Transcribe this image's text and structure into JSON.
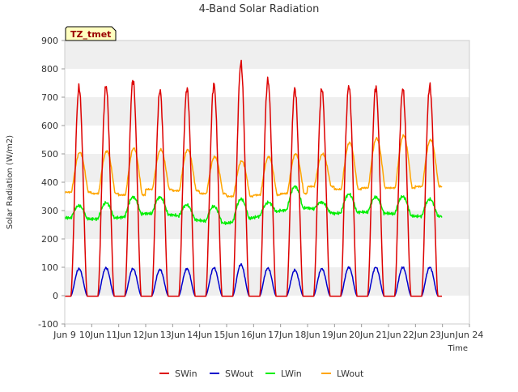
{
  "chart_data": {
    "type": "line",
    "title": "4-Band Solar Radiation",
    "xlabel": "Time",
    "ylabel": "Solar Radiation (W/m2)",
    "annotation": "TZ_tmet",
    "xlim": [
      "2024-06-09",
      "2024-06-24"
    ],
    "ylim": [
      -100,
      900
    ],
    "yticks": [
      -100,
      0,
      100,
      200,
      300,
      400,
      500,
      600,
      700,
      800,
      900
    ],
    "xtick_labels": [
      "Jun 9",
      "10Jun",
      "11Jun",
      "12Jun",
      "13Jun",
      "14Jun",
      "15Jun",
      "16Jun",
      "17Jun",
      "18Jun",
      "19Jun",
      "20Jun",
      "21Jun",
      "22Jun",
      "23Jun",
      "Jun 24"
    ],
    "grid": "horizontal bands",
    "legend_position": "bottom",
    "colors": {
      "SWin": "#dd0000",
      "SWout": "#0000cc",
      "LWin": "#00ee00",
      "LWout": "#ffa500",
      "band": "#efefef",
      "axis": "#cccccc"
    },
    "daily": {
      "days": [
        "2024-06-09",
        "2024-06-10",
        "2024-06-11",
        "2024-06-12",
        "2024-06-13",
        "2024-06-14",
        "2024-06-15",
        "2024-06-16",
        "2024-06-17",
        "2024-06-18",
        "2024-06-19",
        "2024-06-20",
        "2024-06-21",
        "2024-06-22"
      ],
      "SWin_peak": [
        735,
        740,
        760,
        725,
        730,
        745,
        820,
        760,
        730,
        730,
        740,
        735,
        730,
        740
      ],
      "SWout_peak": [
        95,
        98,
        95,
        92,
        95,
        98,
        110,
        97,
        90,
        95,
        100,
        100,
        100,
        100
      ],
      "LWin_night": [
        275,
        270,
        275,
        290,
        285,
        265,
        255,
        275,
        300,
        310,
        290,
        295,
        290,
        280
      ],
      "LWin_day": [
        320,
        325,
        340,
        350,
        330,
        320,
        330,
        315,
        380,
        340,
        355,
        350,
        355,
        340
      ],
      "LWout_night": [
        365,
        360,
        355,
        375,
        370,
        360,
        350,
        355,
        360,
        385,
        375,
        380,
        380,
        385
      ],
      "LWout_peak": [
        505,
        510,
        520,
        515,
        515,
        490,
        475,
        490,
        500,
        500,
        540,
        555,
        565,
        550
      ]
    },
    "series": [
      {
        "name": "SWin"
      },
      {
        "name": "SWout"
      },
      {
        "name": "LWin"
      },
      {
        "name": "LWout"
      }
    ]
  }
}
